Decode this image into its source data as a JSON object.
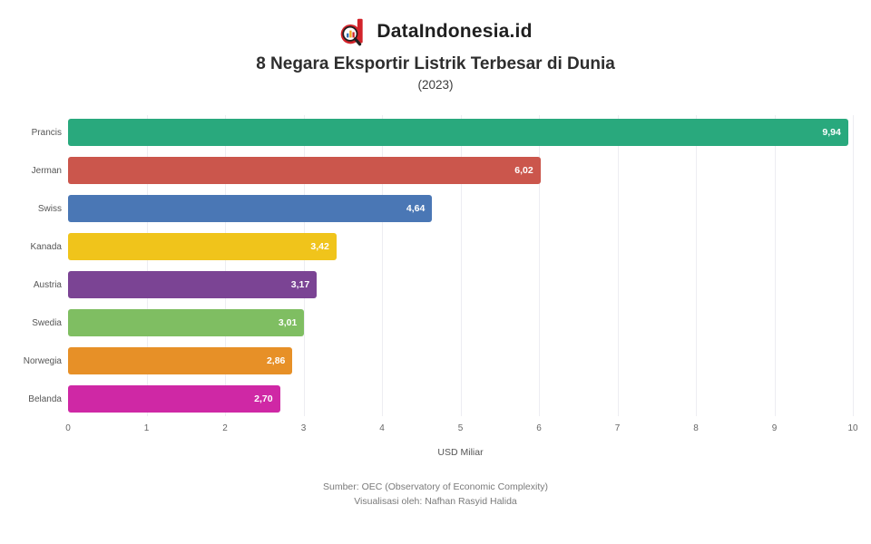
{
  "header": {
    "brand": "DataIndonesia.id",
    "title": "8 Negara Eksportir Listrik Terbesar di Dunia",
    "subtitle": "(2023)",
    "logo_red": "#D2232A",
    "logo_dark": "#1f1f1f"
  },
  "chart_data": {
    "type": "bar",
    "orientation": "horizontal",
    "title": "8 Negara Eksportir Listrik Terbesar di Dunia",
    "subtitle": "(2023)",
    "categories": [
      "Prancis",
      "Jerman",
      "Swiss",
      "Kanada",
      "Austria",
      "Swedia",
      "Norwegia",
      "Belanda"
    ],
    "values": [
      9.94,
      6.02,
      4.64,
      3.42,
      3.17,
      3.01,
      2.86,
      2.7
    ],
    "value_labels": [
      "9,94",
      "6,02",
      "4,64",
      "3,42",
      "3,17",
      "3,01",
      "2,86",
      "2,70"
    ],
    "bar_colors": [
      "#29A97D",
      "#CB564C",
      "#4A77B5",
      "#F0C41B",
      "#7B4494",
      "#7FBE62",
      "#E79027",
      "#CF28A5"
    ],
    "xlabel": "USD Miliar",
    "xlim": [
      0,
      10
    ],
    "tick_labels": [
      "0",
      "1",
      "2",
      "3",
      "4",
      "5",
      "6",
      "7",
      "8",
      "9",
      "10"
    ],
    "grid": true,
    "legend": false
  },
  "footer": {
    "source": "Sumber: OEC (Observatory of Economic Complexity)",
    "credit": "Visualisasi oleh: Nafhan Rasyid Halida"
  }
}
